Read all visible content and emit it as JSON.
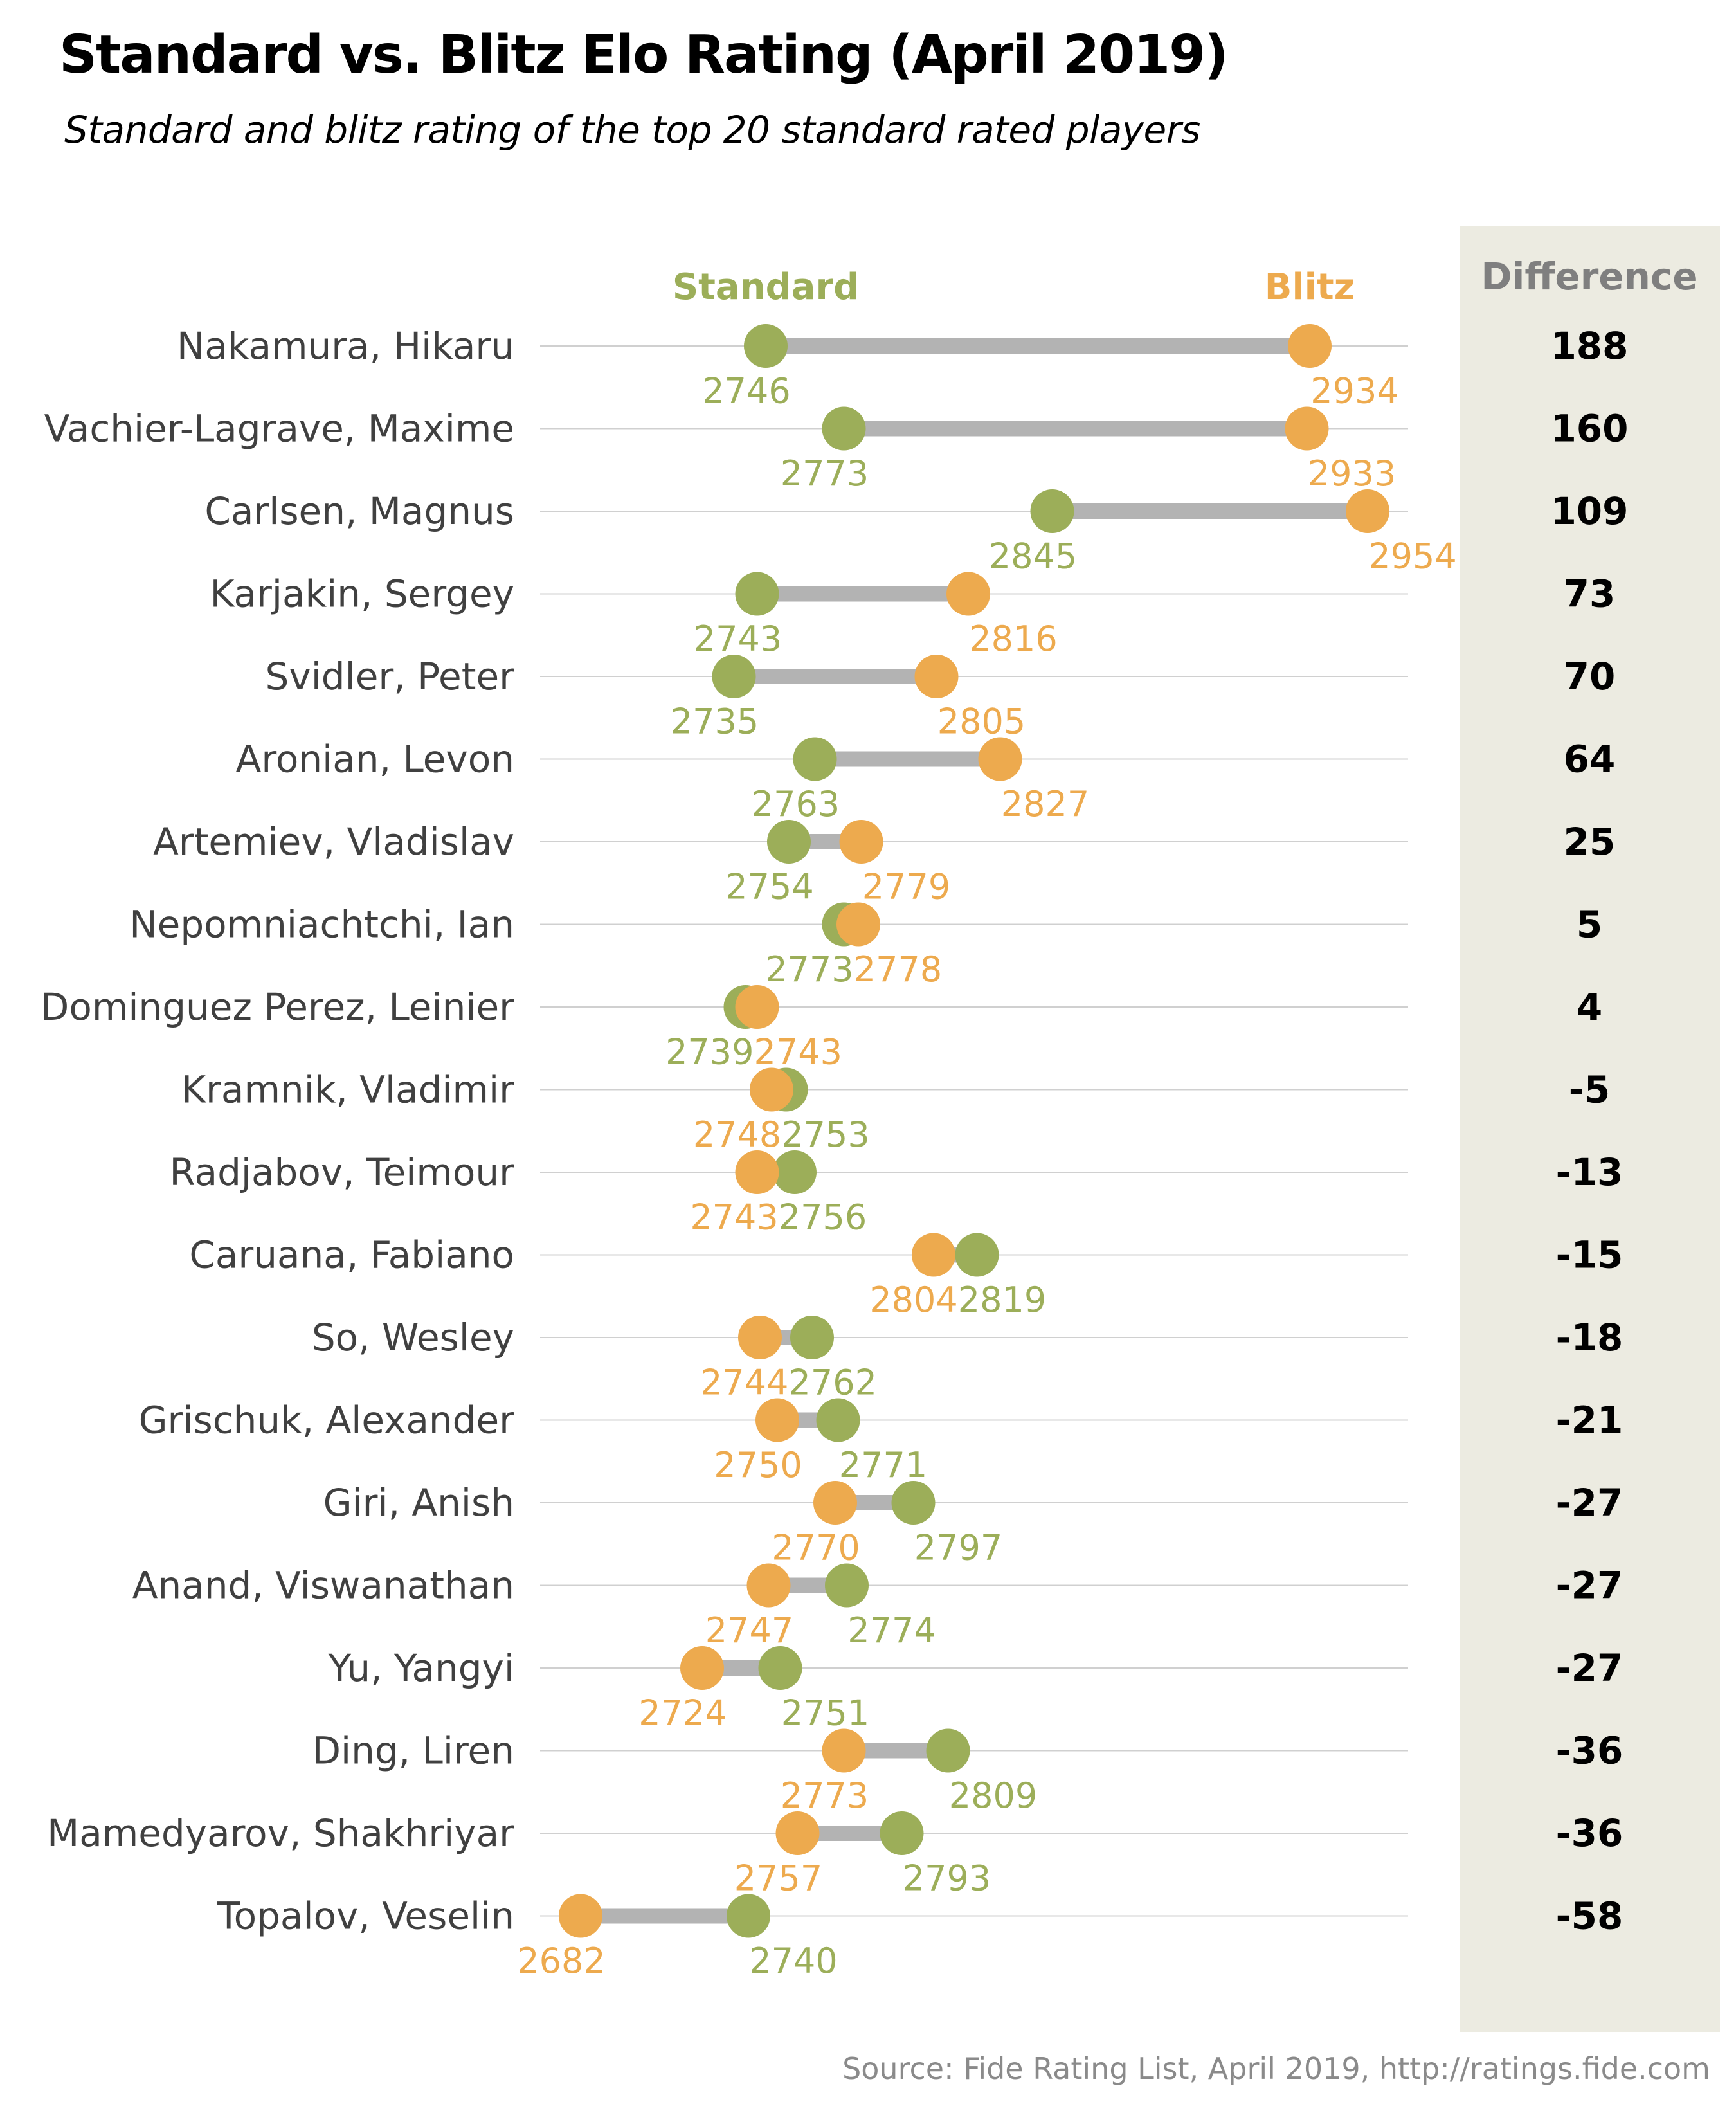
{
  "title": "Standard vs. Blitz Elo Rating (April 2019)",
  "subtitle": "Standard and blitz rating of the top 20 standard rated players",
  "source": "Source: Fide Rating List, April 2019, http://ratings.fide.com",
  "colors": {
    "standard": "#9cae59",
    "blitz": "#edaa4e",
    "connector": "#b3b3b3",
    "gridline": "#d0d0d0",
    "difference_panel": "#ecebe1",
    "difference_header": "#7f7f7f",
    "player_label": "#404040"
  },
  "chart_data": {
    "type": "dumbbell",
    "legend": {
      "standard": "Standard",
      "blitz": "Blitz",
      "difference_header": "Difference"
    },
    "grid": true,
    "xlim": [
      2668,
      2968
    ],
    "players": [
      {
        "name": "Nakamura, Hikaru",
        "standard": 2746,
        "blitz": 2934,
        "difference": "188"
      },
      {
        "name": "Vachier-Lagrave, Maxime",
        "standard": 2773,
        "blitz": 2933,
        "difference": "160"
      },
      {
        "name": "Carlsen, Magnus",
        "standard": 2845,
        "blitz": 2954,
        "difference": "109"
      },
      {
        "name": "Karjakin, Sergey",
        "standard": 2743,
        "blitz": 2816,
        "difference": "73"
      },
      {
        "name": "Svidler, Peter",
        "standard": 2735,
        "blitz": 2805,
        "difference": "70"
      },
      {
        "name": "Aronian, Levon",
        "standard": 2763,
        "blitz": 2827,
        "difference": "64"
      },
      {
        "name": "Artemiev, Vladislav",
        "standard": 2754,
        "blitz": 2779,
        "difference": "25"
      },
      {
        "name": "Nepomniachtchi, Ian",
        "standard": 2773,
        "blitz": 2778,
        "difference": "5"
      },
      {
        "name": "Dominguez Perez, Leinier",
        "standard": 2739,
        "blitz": 2743,
        "difference": "4"
      },
      {
        "name": "Kramnik, Vladimir",
        "standard": 2753,
        "blitz": 2748,
        "difference": "-5"
      },
      {
        "name": "Radjabov, Teimour",
        "standard": 2756,
        "blitz": 2743,
        "difference": "-13"
      },
      {
        "name": "Caruana, Fabiano",
        "standard": 2819,
        "blitz": 2804,
        "difference": "-15"
      },
      {
        "name": "So, Wesley",
        "standard": 2762,
        "blitz": 2744,
        "difference": "-18"
      },
      {
        "name": "Grischuk, Alexander",
        "standard": 2771,
        "blitz": 2750,
        "difference": "-21"
      },
      {
        "name": "Giri, Anish",
        "standard": 2797,
        "blitz": 2770,
        "difference": "-27"
      },
      {
        "name": "Anand, Viswanathan",
        "standard": 2774,
        "blitz": 2747,
        "difference": "-27"
      },
      {
        "name": "Yu, Yangyi",
        "standard": 2751,
        "blitz": 2724,
        "difference": "-27"
      },
      {
        "name": "Ding, Liren",
        "standard": 2809,
        "blitz": 2773,
        "difference": "-36"
      },
      {
        "name": "Mamedyarov, Shakhriyar",
        "standard": 2793,
        "blitz": 2757,
        "difference": "-36"
      },
      {
        "name": "Topalov, Veselin",
        "standard": 2740,
        "blitz": 2682,
        "difference": "-58"
      }
    ]
  }
}
